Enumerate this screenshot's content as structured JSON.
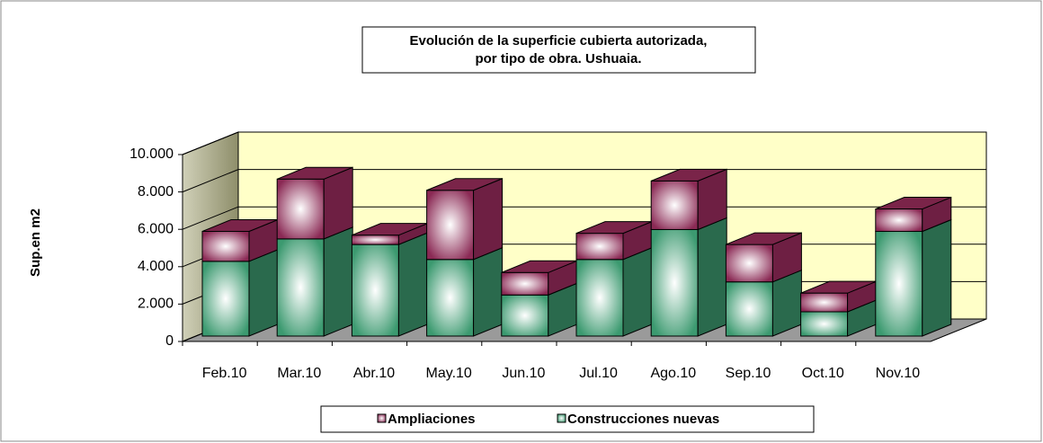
{
  "chart_data": {
    "type": "bar3d_stacked",
    "title": [
      "Evolución de la superficie cubierta autorizada,",
      "por tipo de obra. Ushuaia."
    ],
    "y_label": "Sup.en m2",
    "categories": [
      "Feb.10",
      "Mar.10",
      "Abr.10",
      "May.10",
      "Jun.10",
      "Jul.10",
      "Ago.10",
      "Sep.10",
      "Oct.10",
      "Nov.10"
    ],
    "series": [
      {
        "name": "Ampliaciones",
        "color": "#8b2a55",
        "values": [
          1600,
          3200,
          500,
          3700,
          1200,
          1400,
          2600,
          2000,
          1000,
          1200
        ]
      },
      {
        "name": "Construcciones nuevas",
        "color": "#3c9a70",
        "values": [
          4000,
          5200,
          4900,
          4100,
          2200,
          4100,
          5700,
          2900,
          1300,
          5600
        ]
      }
    ],
    "ylim": [
      0,
      10000
    ],
    "yticks": [
      0,
      {
        "value": 2000,
        "label": "2.000"
      },
      {
        "value": 4000,
        "label": "4.000"
      },
      {
        "value": 6000,
        "label": "6.000"
      },
      {
        "value": 8000,
        "label": "8.000"
      },
      {
        "value": 10000,
        "label": "10.000"
      }
    ],
    "grid": true
  }
}
